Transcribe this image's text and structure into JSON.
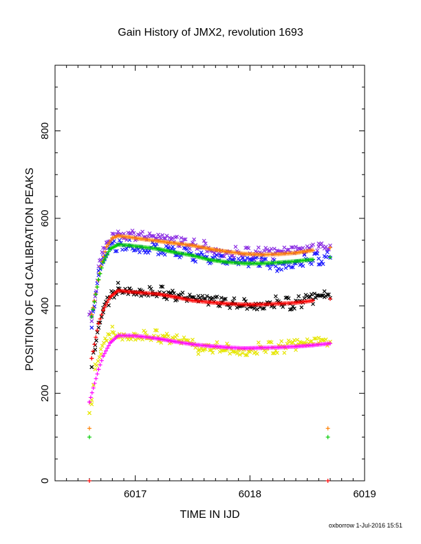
{
  "chart_data": {
    "type": "scatter",
    "title": "Gain History of JMX2, revolution 1693",
    "xlabel": "TIME IN IJD",
    "ylabel": "POSITION OF Cd CALIBRATION PEAKS",
    "xlim": [
      6016.3,
      6019.0
    ],
    "ylim": [
      0,
      950
    ],
    "x_ticks": [
      6017,
      6018,
      6019
    ],
    "y_ticks": [
      0,
      200,
      400,
      600,
      800
    ],
    "grid": false,
    "series": [
      {
        "marker": "x",
        "color": "#8a2be2",
        "points": [
          [
            6016.6,
            380
          ],
          [
            6016.62,
            365
          ],
          [
            6016.65,
            410
          ],
          [
            6016.68,
            480
          ],
          [
            6016.7,
            505
          ],
          [
            6016.72,
            520
          ],
          [
            6016.75,
            545
          ],
          [
            6016.8,
            565
          ],
          [
            6016.85,
            570
          ],
          [
            6016.9,
            565
          ],
          [
            6017.0,
            558
          ],
          [
            6017.1,
            555
          ],
          [
            6017.2,
            550
          ],
          [
            6017.3,
            547
          ],
          [
            6017.4,
            545
          ],
          [
            6017.5,
            540
          ],
          [
            6017.6,
            535
          ],
          [
            6017.7,
            530
          ],
          [
            6017.8,
            525
          ],
          [
            6017.9,
            522
          ],
          [
            6018.0,
            520
          ],
          [
            6018.1,
            520
          ],
          [
            6018.2,
            518
          ],
          [
            6018.3,
            520
          ],
          [
            6018.4,
            523
          ],
          [
            6018.5,
            528
          ],
          [
            6018.6,
            535
          ],
          [
            6018.7,
            538
          ]
        ]
      },
      {
        "marker": "x",
        "color": "#1a1aff",
        "points": [
          [
            6016.62,
            350
          ],
          [
            6016.68,
            470
          ],
          [
            6016.72,
            500
          ],
          [
            6016.78,
            530
          ],
          [
            6016.85,
            540
          ],
          [
            6016.95,
            538
          ],
          [
            6017.05,
            535
          ],
          [
            6017.2,
            530
          ],
          [
            6017.35,
            522
          ],
          [
            6017.5,
            515
          ],
          [
            6017.65,
            505
          ],
          [
            6017.8,
            500
          ],
          [
            6017.9,
            495
          ],
          [
            6018.0,
            498
          ],
          [
            6018.1,
            500
          ],
          [
            6018.2,
            495
          ],
          [
            6018.25,
            485
          ],
          [
            6018.3,
            500
          ],
          [
            6018.4,
            502
          ],
          [
            6018.5,
            505
          ],
          [
            6018.6,
            508
          ],
          [
            6018.7,
            510
          ]
        ]
      },
      {
        "marker": "x",
        "color": "#000000",
        "points": [
          [
            6016.62,
            260
          ],
          [
            6016.65,
            300
          ],
          [
            6016.68,
            350
          ],
          [
            6016.72,
            385
          ],
          [
            6016.78,
            420
          ],
          [
            6016.85,
            440
          ],
          [
            6016.95,
            440
          ],
          [
            6017.05,
            435
          ],
          [
            6017.15,
            432
          ],
          [
            6017.25,
            430
          ],
          [
            6017.35,
            420
          ],
          [
            6017.45,
            415
          ],
          [
            6017.55,
            410
          ],
          [
            6017.65,
            410
          ],
          [
            6017.75,
            408
          ],
          [
            6017.85,
            405
          ],
          [
            6017.95,
            402
          ],
          [
            6018.05,
            405
          ],
          [
            6018.15,
            408
          ],
          [
            6018.25,
            410
          ],
          [
            6018.35,
            405
          ],
          [
            6018.45,
            410
          ],
          [
            6018.55,
            415
          ],
          [
            6018.65,
            420
          ],
          [
            6018.7,
            418
          ]
        ]
      },
      {
        "marker": "x",
        "color": "#e6e600",
        "points": [
          [
            6016.6,
            155
          ],
          [
            6016.62,
            175
          ],
          [
            6016.65,
            255
          ],
          [
            6016.7,
            290
          ],
          [
            6016.75,
            320
          ],
          [
            6016.8,
            340
          ],
          [
            6016.9,
            335
          ],
          [
            6017.0,
            335
          ],
          [
            6017.1,
            332
          ],
          [
            6017.2,
            330
          ],
          [
            6017.3,
            322
          ],
          [
            6017.4,
            318
          ],
          [
            6017.5,
            310
          ],
          [
            6017.55,
            290
          ],
          [
            6017.6,
            300
          ],
          [
            6017.7,
            305
          ],
          [
            6017.8,
            300
          ],
          [
            6017.9,
            302
          ],
          [
            6018.0,
            300
          ],
          [
            6018.1,
            305
          ],
          [
            6018.2,
            305
          ],
          [
            6018.3,
            306
          ],
          [
            6018.4,
            310
          ],
          [
            6018.5,
            310
          ],
          [
            6018.6,
            315
          ],
          [
            6018.7,
            318
          ]
        ]
      },
      {
        "marker": "+",
        "color": "#ff7f00",
        "points": [
          [
            6016.6,
            120
          ],
          [
            6016.62,
            380
          ],
          [
            6016.7,
            490
          ],
          [
            6016.75,
            535
          ],
          [
            6016.8,
            555
          ],
          [
            6016.85,
            560
          ],
          [
            6016.95,
            557
          ],
          [
            6017.05,
            553
          ],
          [
            6017.2,
            548
          ],
          [
            6017.35,
            543
          ],
          [
            6017.5,
            538
          ],
          [
            6017.65,
            530
          ],
          [
            6017.8,
            524
          ],
          [
            6017.95,
            519
          ],
          [
            6018.1,
            517
          ],
          [
            6018.25,
            518
          ],
          [
            6018.4,
            521
          ],
          [
            6018.55,
            527
          ],
          [
            6018.7,
            533
          ],
          [
            6018.68,
            120
          ]
        ]
      },
      {
        "marker": "+",
        "color": "#00cc00",
        "points": [
          [
            6016.6,
            100
          ],
          [
            6016.62,
            375
          ],
          [
            6016.68,
            460
          ],
          [
            6016.72,
            500
          ],
          [
            6016.78,
            530
          ],
          [
            6016.85,
            540
          ],
          [
            6016.95,
            538
          ],
          [
            6017.05,
            535
          ],
          [
            6017.2,
            530
          ],
          [
            6017.35,
            522
          ],
          [
            6017.5,
            515
          ],
          [
            6017.65,
            505
          ],
          [
            6017.8,
            500
          ],
          [
            6017.95,
            497
          ],
          [
            6018.1,
            497
          ],
          [
            6018.25,
            499
          ],
          [
            6018.4,
            502
          ],
          [
            6018.55,
            506
          ],
          [
            6018.7,
            511
          ],
          [
            6018.68,
            100
          ]
        ]
      },
      {
        "marker": "+",
        "color": "#ff0000",
        "points": [
          [
            6016.6,
            0
          ],
          [
            6016.62,
            280
          ],
          [
            6016.68,
            360
          ],
          [
            6016.72,
            390
          ],
          [
            6016.78,
            420
          ],
          [
            6016.85,
            435
          ],
          [
            6016.95,
            432
          ],
          [
            6017.05,
            430
          ],
          [
            6017.2,
            427
          ],
          [
            6017.35,
            420
          ],
          [
            6017.5,
            412
          ],
          [
            6017.65,
            408
          ],
          [
            6017.8,
            405
          ],
          [
            6017.95,
            403
          ],
          [
            6018.1,
            403
          ],
          [
            6018.25,
            405
          ],
          [
            6018.4,
            407
          ],
          [
            6018.55,
            412
          ],
          [
            6018.7,
            416
          ],
          [
            6018.68,
            0
          ]
        ]
      },
      {
        "marker": "+",
        "color": "#ff00ff",
        "points": [
          [
            6016.6,
            180
          ],
          [
            6016.68,
            255
          ],
          [
            6016.72,
            285
          ],
          [
            6016.78,
            315
          ],
          [
            6016.85,
            332
          ],
          [
            6016.95,
            332
          ],
          [
            6017.05,
            330
          ],
          [
            6017.2,
            325
          ],
          [
            6017.35,
            318
          ],
          [
            6017.5,
            312
          ],
          [
            6017.65,
            308
          ],
          [
            6017.8,
            305
          ],
          [
            6017.95,
            303
          ],
          [
            6018.1,
            304
          ],
          [
            6018.25,
            305
          ],
          [
            6018.4,
            307
          ],
          [
            6018.55,
            310
          ],
          [
            6018.7,
            314
          ]
        ]
      }
    ]
  },
  "footer": "oxborrow  1-Jul-2016 15:51"
}
